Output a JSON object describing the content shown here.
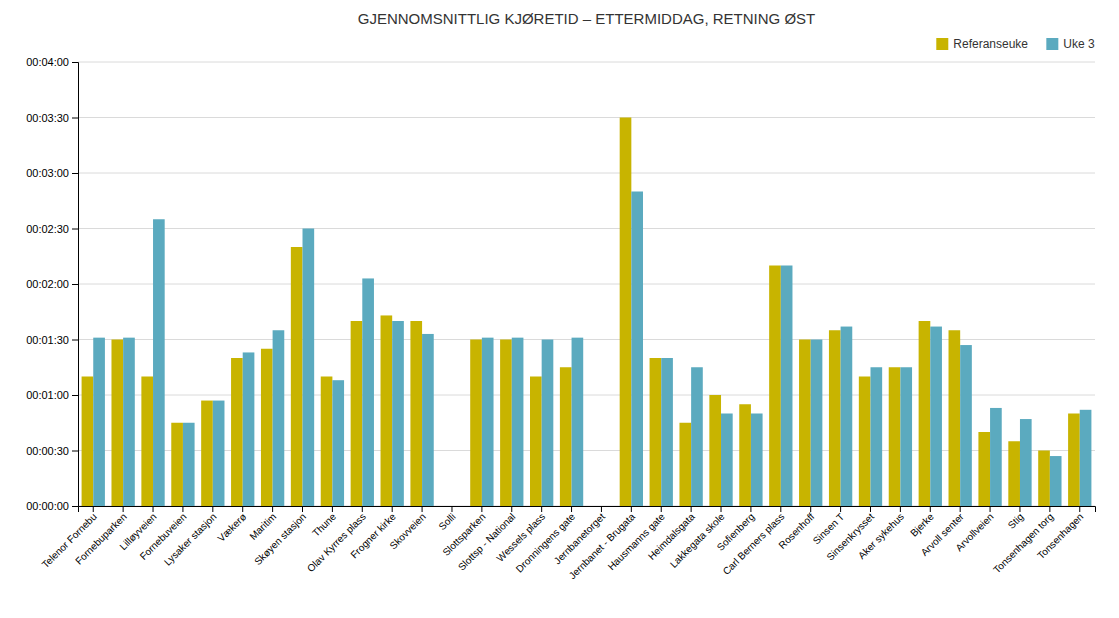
{
  "chart_data": {
    "type": "bar",
    "title": "GJENNOMSNITTLIG KJØRETID – ETTERMIDDAG, RETNING ØST",
    "categories": [
      "Telenor Fornebu",
      "Fornebuparken",
      "Lilløyveien",
      "Fornebuveien",
      "Lysaker stasjon",
      "Vækerø",
      "Maritim",
      "Skøyen stasjon",
      "Thune",
      "Olav Kyrres plass",
      "Frogner kirke",
      "Skovveien",
      "Solli",
      "Slottsparken",
      "Slottsp - National",
      "Wessels plass",
      "Dronningens gate",
      "Jernbanetorget",
      "Jernbanet - Brugata",
      "Hausmanns gate",
      "Heimdalsgata",
      "Lakkegata skole",
      "Sofienberg",
      "Carl Berners plass",
      "Rosenhoff",
      "Sinsen T",
      "Sinsenkrysset",
      "Aker sykehus",
      "Bjerke",
      "Arvoll senter",
      "Arvollveien",
      "Stig",
      "Tonsenhagen torg",
      "Tonsenhagen"
    ],
    "series": [
      {
        "name": "Referanseuke",
        "color": "#c8b400",
        "values": [
          70,
          90,
          70,
          45,
          57,
          80,
          85,
          140,
          70,
          100,
          103,
          100,
          0,
          90,
          90,
          70,
          75,
          0,
          210,
          80,
          45,
          60,
          55,
          130,
          90,
          95,
          70,
          75,
          100,
          95,
          40,
          35,
          30,
          50
        ]
      },
      {
        "name": "Uke 3",
        "color": "#5baabf",
        "values": [
          91,
          91,
          155,
          45,
          57,
          83,
          95,
          150,
          68,
          123,
          100,
          93,
          0,
          91,
          91,
          90,
          91,
          0,
          170,
          80,
          75,
          50,
          50,
          130,
          90,
          97,
          75,
          75,
          97,
          87,
          53,
          47,
          27,
          52
        ]
      }
    ],
    "ylim": [
      0,
      240
    ],
    "yticks": [
      {
        "value": 0,
        "label": "00:00:00"
      },
      {
        "value": 30,
        "label": "00:00:30"
      },
      {
        "value": 60,
        "label": "00:01:00"
      },
      {
        "value": 90,
        "label": "00:01:30"
      },
      {
        "value": 120,
        "label": "00:02:00"
      },
      {
        "value": 150,
        "label": "00:02:30"
      },
      {
        "value": 180,
        "label": "00:03:00"
      },
      {
        "value": 210,
        "label": "00:03:30"
      },
      {
        "value": 240,
        "label": "00:04:00"
      }
    ],
    "grid": true,
    "legend": "upper right"
  }
}
